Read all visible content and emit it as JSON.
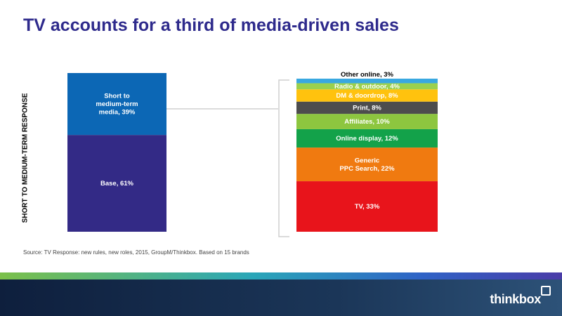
{
  "title": "TV accounts for a third of media-driven sales",
  "source": "Source: TV Response: new rules, new roles, 2015, GroupM/Thinkbox. Based on 15 brands",
  "brand": "thinkbox",
  "chart_data": {
    "type": "bar",
    "ylabel": "SHORT TO MEDIUM-TERM RESPONSE",
    "left_bar": [
      {
        "label_lines": [
          "Base, 61%"
        ],
        "value": 61,
        "color": "#332a86"
      },
      {
        "label_lines": [
          "Short to",
          "medium-term",
          "media, 39%"
        ],
        "value": 39,
        "color": "#0c67b5"
      }
    ],
    "right_bar": [
      {
        "label_lines": [
          "TV, 33%"
        ],
        "value": 33,
        "color": "#e8141b"
      },
      {
        "label_lines": [
          "Generic",
          "PPC Search,  22%"
        ],
        "value": 22,
        "color": "#f07a10"
      },
      {
        "label_lines": [
          "Online display, 12%"
        ],
        "value": 12,
        "color": "#13a24a"
      },
      {
        "label_lines": [
          "Affiliates,  10%"
        ],
        "value": 10,
        "color": "#8dc63f"
      },
      {
        "label_lines": [
          "Print, 8%"
        ],
        "value": 8,
        "color": "#4d4d4d"
      },
      {
        "label_lines": [
          "DM & doordrop, 8%"
        ],
        "value": 8,
        "color": "#ffc20e"
      },
      {
        "label_lines": [
          "Radio & outdoor, 4%"
        ],
        "value": 4,
        "color": "#9bd04e"
      },
      {
        "label_lines": [
          "Other online, 3%"
        ],
        "value": 3,
        "color": "#3aa8e0",
        "label_outside": true
      }
    ]
  }
}
